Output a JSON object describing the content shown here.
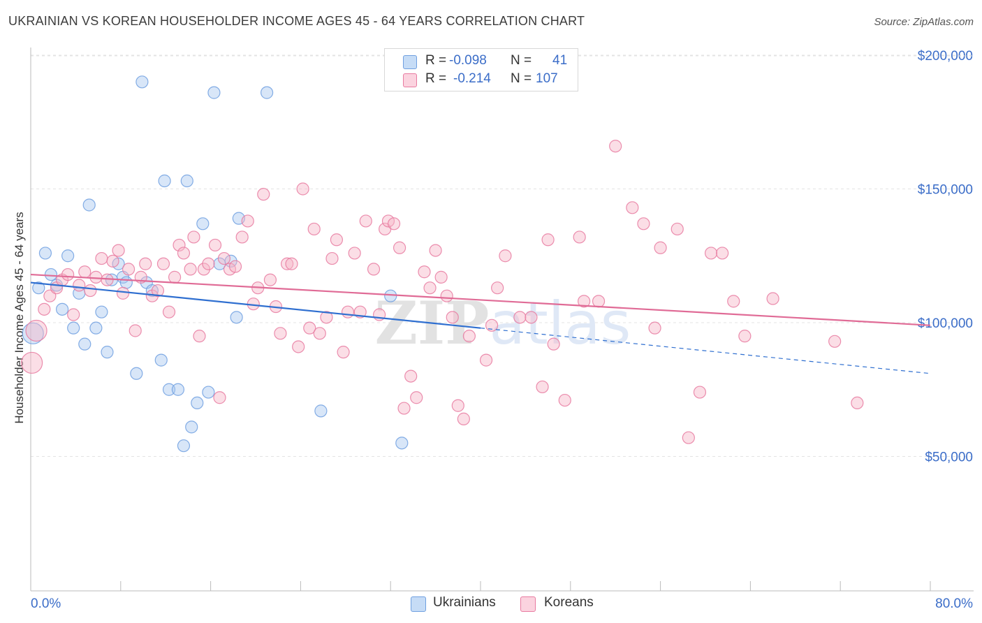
{
  "title": "UKRAINIAN VS KOREAN HOUSEHOLDER INCOME AGES 45 - 64 YEARS CORRELATION CHART",
  "source": "Source: ZipAtlas.com",
  "watermark": "ZIPatlas",
  "legend": {
    "rows": [
      {
        "r_label": "R =",
        "r_value": "-0.098",
        "n_label": "N =",
        "n_value": "41",
        "color": "#a8c8f0"
      },
      {
        "r_label": "R =",
        "r_value": "-0.214",
        "n_label": "N =",
        "n_value": "107",
        "color": "#f7b6c8"
      }
    ]
  },
  "bottom_legend": [
    {
      "label": "Ukrainians",
      "color": "#a8c8f0"
    },
    {
      "label": "Koreans",
      "color": "#f7b6c8"
    }
  ],
  "chart_data": {
    "type": "scatter",
    "title": "UKRAINIAN VS KOREAN HOUSEHOLDER INCOME AGES 45 - 64 YEARS CORRELATION CHART",
    "xlabel": "",
    "ylabel": "Householder Income Ages 45 - 64 years",
    "xlim": [
      0,
      80
    ],
    "ylim": [
      0,
      205000
    ],
    "x_tick_labels": [
      "0.0%",
      "80.0%"
    ],
    "y_ticks": [
      50000,
      100000,
      150000,
      200000
    ],
    "y_tick_labels": [
      "$50,000",
      "$100,000",
      "$150,000",
      "$200,000"
    ],
    "grid": true,
    "series": [
      {
        "name": "Ukrainians",
        "color": "#6f9fe0",
        "fill": "#a8c8f0",
        "trend": {
          "x0": 0,
          "y0": 115000,
          "x1": 40,
          "y1": 98000,
          "dash_to_x": 80,
          "dash_to_y": 81000
        },
        "points": [
          [
            0.2,
            96000
          ],
          [
            0.7,
            113000
          ],
          [
            1.3,
            126000
          ],
          [
            1.8,
            118000
          ],
          [
            2.3,
            114000
          ],
          [
            2.8,
            105000
          ],
          [
            3.3,
            125000
          ],
          [
            3.8,
            98000
          ],
          [
            4.3,
            111000
          ],
          [
            4.8,
            92000
          ],
          [
            5.2,
            144000
          ],
          [
            5.8,
            98000
          ],
          [
            6.3,
            104000
          ],
          [
            6.8,
            89000
          ],
          [
            7.2,
            116000
          ],
          [
            7.8,
            122000
          ],
          [
            8.2,
            117000
          ],
          [
            8.5,
            115000
          ],
          [
            9.4,
            81000
          ],
          [
            9.9,
            190000
          ],
          [
            10.3,
            115000
          ],
          [
            10.8,
            112000
          ],
          [
            11.6,
            86000
          ],
          [
            11.9,
            153000
          ],
          [
            12.3,
            75000
          ],
          [
            13.1,
            75000
          ],
          [
            13.6,
            54000
          ],
          [
            13.9,
            153000
          ],
          [
            14.3,
            61000
          ],
          [
            14.8,
            70000
          ],
          [
            15.3,
            137000
          ],
          [
            15.8,
            74000
          ],
          [
            16.3,
            186000
          ],
          [
            16.8,
            122000
          ],
          [
            17.8,
            123000
          ],
          [
            18.3,
            102000
          ],
          [
            18.5,
            139000
          ],
          [
            21.0,
            186000
          ],
          [
            25.8,
            67000
          ],
          [
            32.0,
            110000
          ],
          [
            33.0,
            55000
          ]
        ]
      },
      {
        "name": "Koreans",
        "color": "#e87aa0",
        "fill": "#f7b6c8",
        "trend": {
          "x0": 0,
          "y0": 118000,
          "x1": 80,
          "y1": 99000
        },
        "points": [
          [
            0.1,
            85000
          ],
          [
            0.5,
            97000
          ],
          [
            1.2,
            105000
          ],
          [
            1.7,
            110000
          ],
          [
            2.3,
            113000
          ],
          [
            2.8,
            116000
          ],
          [
            3.3,
            118000
          ],
          [
            3.8,
            103000
          ],
          [
            4.3,
            114000
          ],
          [
            4.8,
            119000
          ],
          [
            5.3,
            112000
          ],
          [
            5.8,
            117000
          ],
          [
            6.3,
            124000
          ],
          [
            6.8,
            116000
          ],
          [
            7.3,
            123000
          ],
          [
            7.8,
            127000
          ],
          [
            8.2,
            111000
          ],
          [
            8.7,
            120000
          ],
          [
            9.3,
            97000
          ],
          [
            9.8,
            117000
          ],
          [
            10.2,
            122000
          ],
          [
            10.8,
            110000
          ],
          [
            11.3,
            112000
          ],
          [
            11.8,
            122000
          ],
          [
            12.3,
            104000
          ],
          [
            12.8,
            117000
          ],
          [
            13.2,
            129000
          ],
          [
            13.6,
            126000
          ],
          [
            14.2,
            120000
          ],
          [
            14.5,
            132000
          ],
          [
            15.0,
            95000
          ],
          [
            15.4,
            120000
          ],
          [
            15.8,
            122000
          ],
          [
            16.4,
            129000
          ],
          [
            16.8,
            72000
          ],
          [
            17.2,
            124000
          ],
          [
            17.7,
            120000
          ],
          [
            18.2,
            121000
          ],
          [
            18.8,
            132000
          ],
          [
            19.3,
            138000
          ],
          [
            19.8,
            107000
          ],
          [
            20.2,
            113000
          ],
          [
            20.7,
            148000
          ],
          [
            21.3,
            116000
          ],
          [
            21.8,
            106000
          ],
          [
            22.2,
            96000
          ],
          [
            22.8,
            122000
          ],
          [
            23.2,
            122000
          ],
          [
            23.8,
            91000
          ],
          [
            24.2,
            150000
          ],
          [
            24.8,
            98000
          ],
          [
            25.2,
            135000
          ],
          [
            25.7,
            96000
          ],
          [
            26.3,
            102000
          ],
          [
            26.8,
            124000
          ],
          [
            27.2,
            131000
          ],
          [
            27.8,
            89000
          ],
          [
            28.2,
            104000
          ],
          [
            28.8,
            126000
          ],
          [
            29.3,
            104000
          ],
          [
            29.8,
            138000
          ],
          [
            30.5,
            120000
          ],
          [
            31.0,
            103000
          ],
          [
            31.5,
            135000
          ],
          [
            31.8,
            138000
          ],
          [
            32.3,
            137000
          ],
          [
            32.8,
            128000
          ],
          [
            33.2,
            68000
          ],
          [
            33.8,
            80000
          ],
          [
            34.3,
            72000
          ],
          [
            35.0,
            119000
          ],
          [
            35.5,
            113000
          ],
          [
            36.0,
            127000
          ],
          [
            36.5,
            117000
          ],
          [
            37.0,
            110000
          ],
          [
            37.5,
            102000
          ],
          [
            38.0,
            69000
          ],
          [
            38.5,
            64000
          ],
          [
            39.0,
            95000
          ],
          [
            40.5,
            86000
          ],
          [
            41.0,
            99000
          ],
          [
            41.5,
            113000
          ],
          [
            42.2,
            125000
          ],
          [
            43.5,
            102000
          ],
          [
            44.5,
            102000
          ],
          [
            45.5,
            76000
          ],
          [
            46.0,
            131000
          ],
          [
            46.5,
            92000
          ],
          [
            47.5,
            71000
          ],
          [
            48.8,
            132000
          ],
          [
            49.2,
            108000
          ],
          [
            50.5,
            108000
          ],
          [
            52.0,
            166000
          ],
          [
            53.5,
            143000
          ],
          [
            54.5,
            137000
          ],
          [
            55.5,
            98000
          ],
          [
            56.0,
            128000
          ],
          [
            57.5,
            135000
          ],
          [
            58.5,
            57000
          ],
          [
            59.5,
            74000
          ],
          [
            60.5,
            126000
          ],
          [
            61.5,
            126000
          ],
          [
            62.5,
            108000
          ],
          [
            63.5,
            95000
          ],
          [
            66.0,
            109000
          ],
          [
            71.5,
            93000
          ],
          [
            73.5,
            70000
          ]
        ]
      }
    ]
  }
}
